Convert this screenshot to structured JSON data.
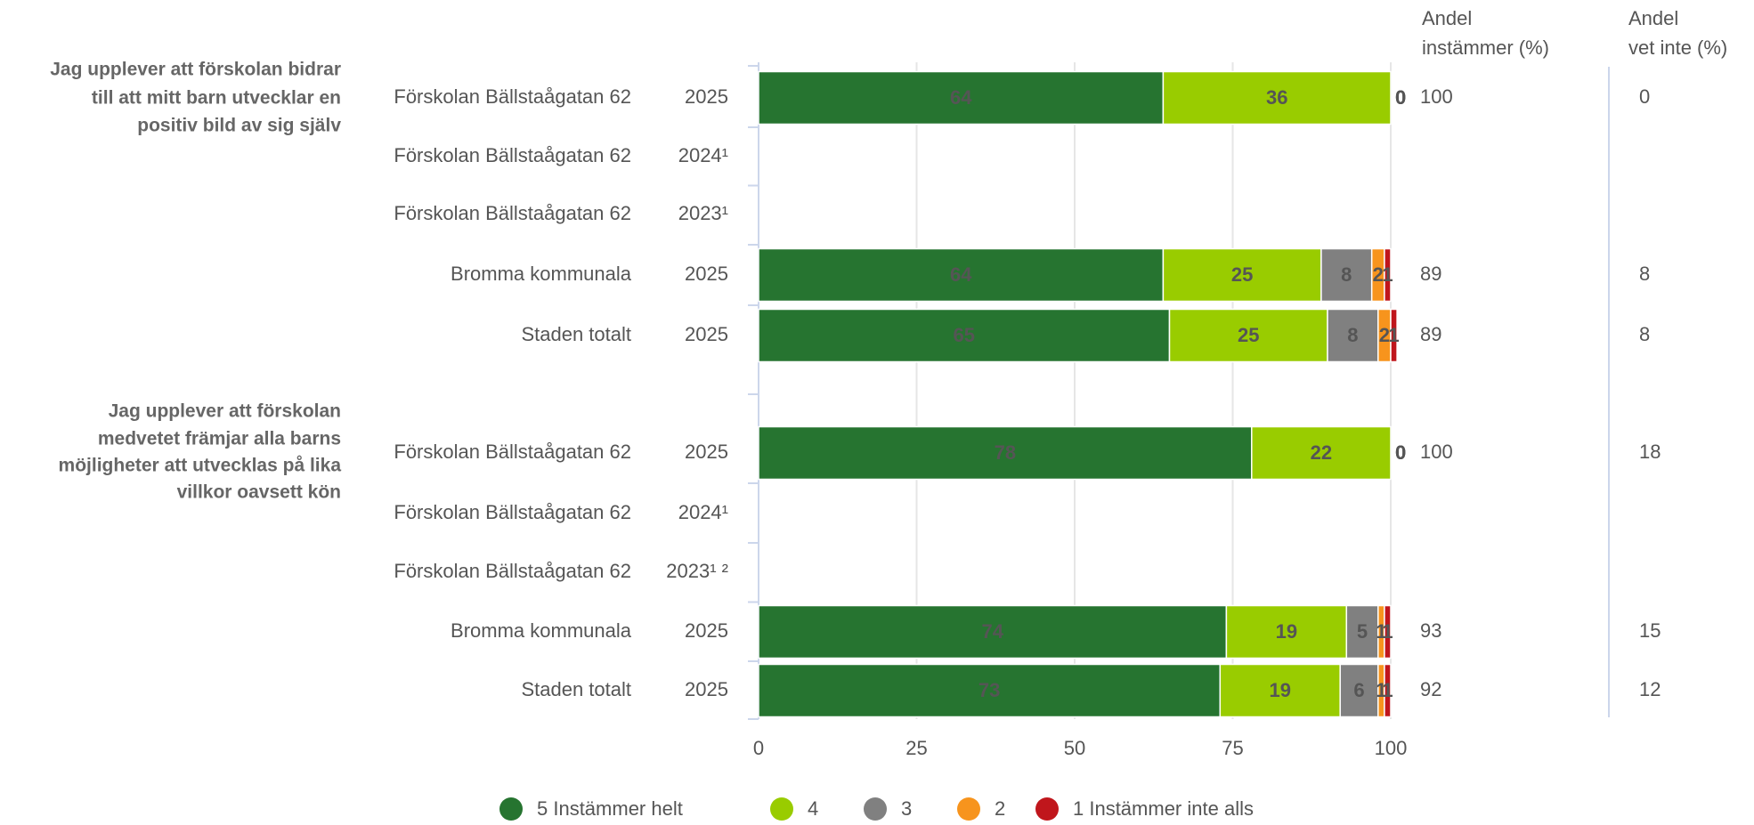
{
  "chart_data": {
    "type": "stacked_bar_horizontal",
    "groups": [
      {
        "lines": [
          "Jag upplever att förskolan bidrar",
          "till att mitt barn utvecklar en",
          "positiv bild av sig själv"
        ]
      },
      {
        "lines": [
          "Jag upplever att förskolan",
          "medvetet främjar alla barns",
          "möjligheter att utvecklas på lika",
          "villkor oavsett kön"
        ]
      }
    ],
    "categories": [
      "Förskolan Bällstaågatan 62",
      "Förskolan Bällstaågatan 62",
      "Förskolan Bällstaågatan 62",
      "Bromma kommunala",
      "Staden totalt",
      "Förskolan Bällstaågatan 62",
      "Förskolan Bällstaågatan 62",
      "Förskolan Bällstaågatan 62",
      "Bromma kommunala",
      "Staden totalt"
    ],
    "years": [
      "2025",
      "2024¹",
      "2023¹",
      "2025",
      "2025",
      "2025",
      "2024¹",
      "2023¹ ²",
      "2025",
      "2025"
    ],
    "series": [
      {
        "name": "5 Instämmer helt",
        "color": "#267430",
        "values": [
          64,
          null,
          null,
          64,
          65,
          78,
          null,
          null,
          74,
          73
        ]
      },
      {
        "name": "4",
        "color": "#99cc00",
        "values": [
          36,
          null,
          null,
          25,
          25,
          22,
          null,
          null,
          19,
          19
        ]
      },
      {
        "name": "3",
        "color": "#808080",
        "values": [
          0,
          null,
          null,
          8,
          8,
          0,
          null,
          null,
          5,
          6
        ]
      },
      {
        "name": "2",
        "color": "#f7941d",
        "values": [
          0,
          null,
          null,
          2,
          2,
          0,
          null,
          null,
          1,
          1
        ]
      },
      {
        "name": "1 Instämmer inte alls",
        "color": "#c0161c",
        "values": [
          0,
          null,
          null,
          1,
          1,
          0,
          null,
          null,
          1,
          1
        ]
      }
    ],
    "columns": [
      {
        "header": [
          "Andel",
          "instämmer (%)"
        ],
        "values": [
          100,
          null,
          null,
          89,
          89,
          100,
          null,
          null,
          93,
          92
        ]
      },
      {
        "header": [
          "Andel",
          "vet inte (%)"
        ],
        "values": [
          0,
          null,
          null,
          8,
          8,
          18,
          null,
          null,
          15,
          12
        ]
      }
    ],
    "xlim": [
      0,
      100
    ],
    "xticks": [
      0,
      25,
      50,
      75,
      100
    ],
    "grid": true,
    "legend": "bottom"
  }
}
